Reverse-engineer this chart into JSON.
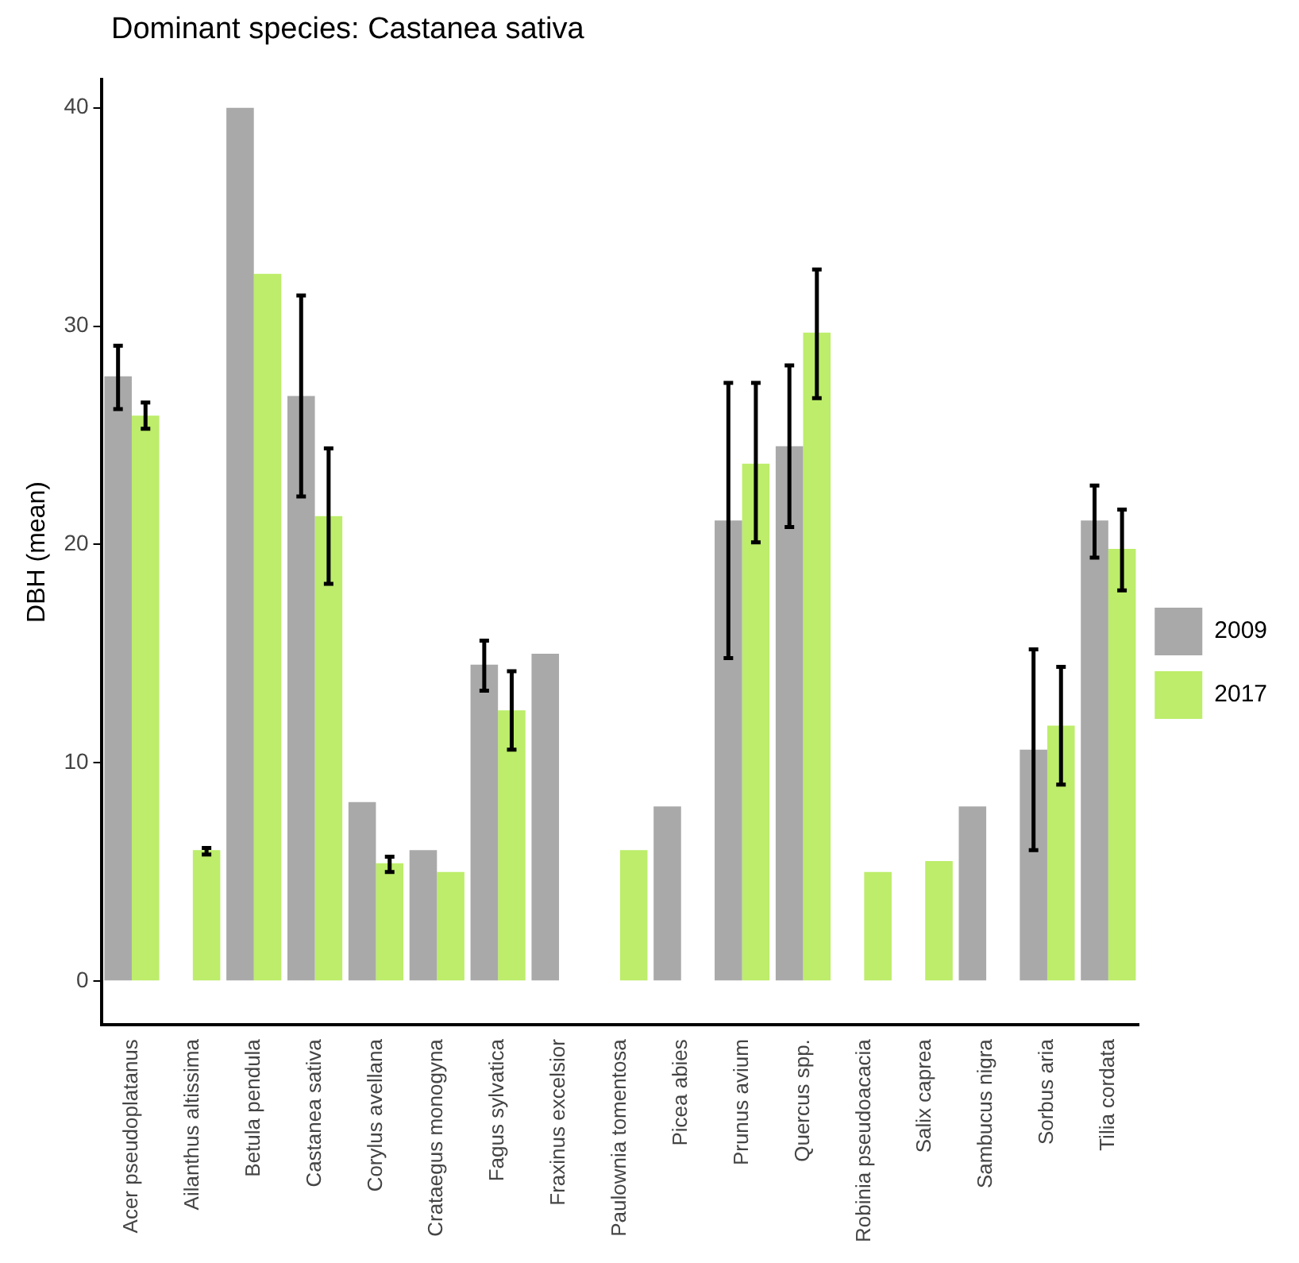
{
  "chart_data": {
    "type": "bar",
    "title": "Dominant species: Castanea sativa",
    "ylabel": "DBH (mean)",
    "categories": [
      "Acer pseudoplatanus",
      "Ailanthus altissima",
      "Betula pendula",
      "Castanea sativa",
      "Corylus avellana",
      "Crataegus monogyna",
      "Fagus sylvatica",
      "Fraxinus excelsior",
      "Paulownia tomentosa",
      "Picea abies",
      "Prunus avium",
      "Quercus spp.",
      "Robinia pseudoacacia",
      "Salix caprea",
      "Sambucus nigra",
      "Sorbus aria",
      "Tilia cordata"
    ],
    "series": [
      {
        "name": "2009",
        "color": "#a9a9a9",
        "values": [
          27.7,
          null,
          40,
          26.8,
          8.2,
          6.0,
          14.5,
          15,
          null,
          8,
          21.1,
          24.5,
          null,
          null,
          8,
          10.6,
          21.1
        ],
        "errors": [
          [
            26.2,
            29.1
          ],
          null,
          null,
          [
            22.2,
            31.4
          ],
          null,
          null,
          [
            13.3,
            15.6
          ],
          null,
          null,
          null,
          [
            14.8,
            27.4
          ],
          [
            20.8,
            28.2
          ],
          null,
          null,
          null,
          [
            6.0,
            15.2
          ],
          [
            19.4,
            22.7
          ]
        ]
      },
      {
        "name": "2017",
        "color": "#bded6a",
        "values": [
          25.9,
          6.0,
          32.4,
          21.3,
          5.4,
          5.0,
          12.4,
          null,
          6.0,
          null,
          23.7,
          29.7,
          5.0,
          5.5,
          null,
          11.7,
          19.8
        ],
        "errors": [
          [
            25.3,
            26.5
          ],
          [
            5.8,
            6.1
          ],
          null,
          [
            18.2,
            24.4
          ],
          [
            5.0,
            5.7
          ],
          null,
          [
            10.6,
            14.2
          ],
          null,
          null,
          null,
          [
            20.1,
            27.4
          ],
          [
            26.7,
            32.6
          ],
          null,
          null,
          null,
          [
            9.0,
            14.4
          ],
          [
            17.9,
            21.6
          ]
        ]
      }
    ],
    "ylim": [
      -2,
      41.3
    ],
    "yticks": [
      0,
      10,
      20,
      30,
      40
    ],
    "grid": false,
    "legend": "right"
  }
}
